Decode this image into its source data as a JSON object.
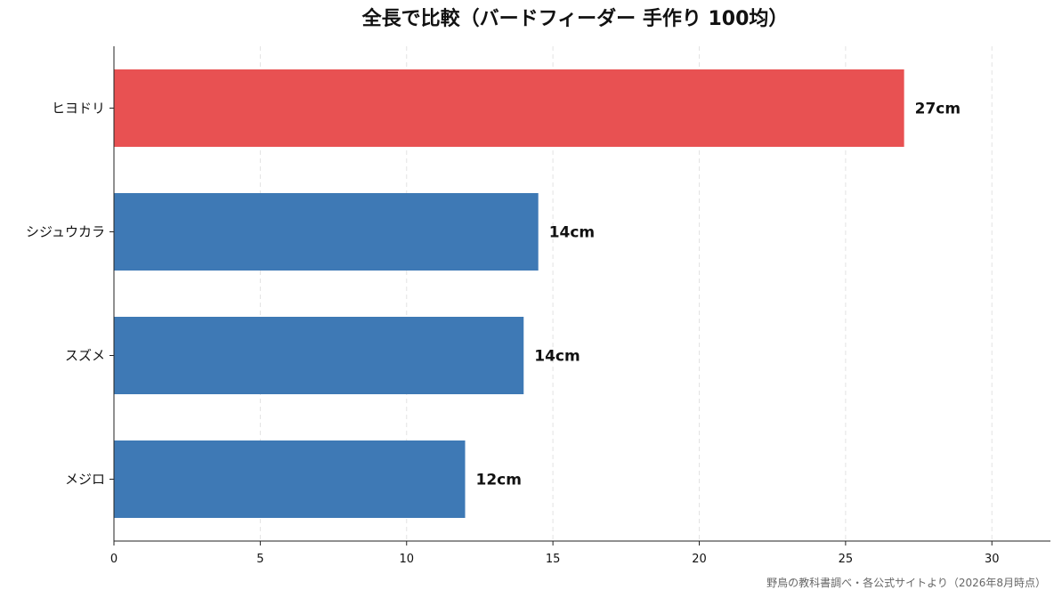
{
  "chart_data": {
    "type": "bar",
    "orientation": "horizontal",
    "title": "全長で比較（バードフィーダー 手作り 100均）",
    "categories": [
      "ヒヨドリ",
      "シジュウカラ",
      "スズメ",
      "メジロ"
    ],
    "values": [
      27,
      14.5,
      14,
      12
    ],
    "value_labels": [
      "27cm",
      "14cm",
      "14cm",
      "12cm"
    ],
    "bar_colors": [
      "#e85152",
      "#3e79b5",
      "#3e79b5",
      "#3e79b5"
    ],
    "xlim": [
      0,
      32
    ],
    "xticks": [
      0,
      5,
      10,
      15,
      20,
      25,
      30
    ],
    "xlabel": "",
    "ylabel": "",
    "grid": "vertical-dashed",
    "source": "野鳥の教科書調べ・各公式サイトより（2026年8月時点）"
  }
}
